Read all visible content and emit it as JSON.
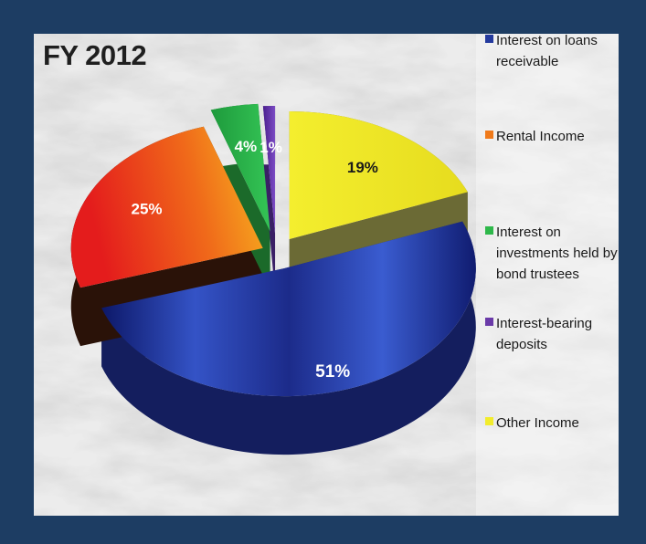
{
  "chart_data": {
    "type": "pie",
    "title": "FY 2012",
    "categories": [
      "Interest on loans receivable",
      "Rental Income",
      "Interest on investments held by bond trustees",
      "Interest-bearing deposits",
      "Other Income"
    ],
    "values": [
      51,
      25,
      4,
      1,
      19
    ],
    "labels": [
      "51%",
      "25%",
      "4%",
      "1%",
      "19%"
    ],
    "colors": [
      "#243a9e",
      "#f07a1a",
      "#2eb84a",
      "#6a3aa8",
      "#f2ec2c"
    ],
    "legend_position": "right",
    "style": "3d-exploded"
  }
}
